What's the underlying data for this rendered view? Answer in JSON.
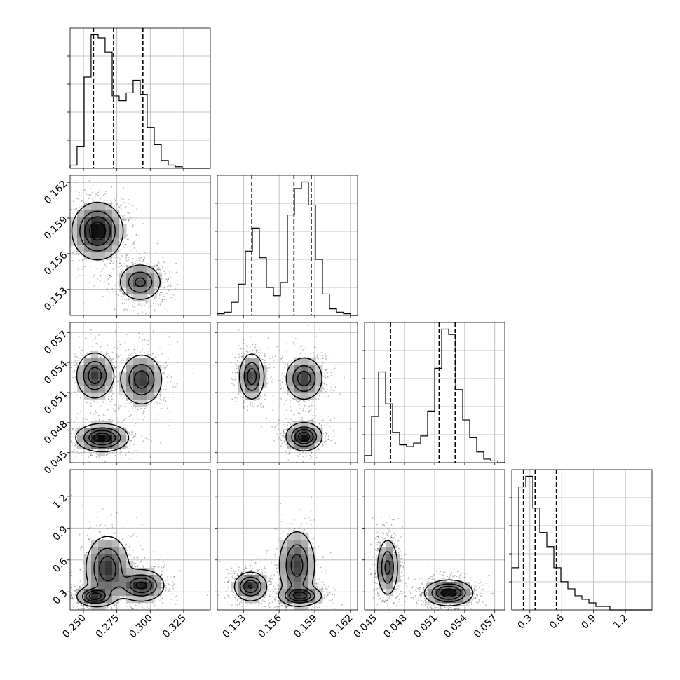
{
  "chart_data": {
    "type": "corner",
    "title": "",
    "colors": {
      "line": "#000000",
      "grid": "#b0b0b0",
      "background": "#ffffff"
    },
    "grid": true,
    "params": [
      {
        "ticks": [
          0.25,
          0.275,
          0.3,
          0.325
        ],
        "tick_labels": [
          "0.250",
          "0.275",
          "0.300",
          "0.325"
        ],
        "range": [
          0.24,
          0.345
        ],
        "quantiles": [
          0.2575,
          0.2725,
          0.2945
        ],
        "hist_edges": [
          0.24,
          0.2452,
          0.2505,
          0.2557,
          0.261,
          0.2662,
          0.2715,
          0.2767,
          0.282,
          0.2872,
          0.2925,
          0.2977,
          0.303,
          0.3082,
          0.3135,
          0.3187,
          0.324,
          0.3292,
          0.3345,
          0.3397,
          0.345
        ],
        "hist_counts": [
          2,
          14,
          58,
          85,
          83,
          74,
          46,
          43,
          48,
          56,
          47,
          26,
          15,
          5,
          2,
          1,
          0,
          0,
          0,
          0
        ]
      },
      {
        "ticks": [
          0.153,
          0.156,
          0.159,
          0.162
        ],
        "tick_labels": [
          "0.153",
          "0.156",
          "0.159",
          "0.162"
        ],
        "range": [
          0.1508,
          0.1626
        ],
        "quantiles": [
          0.1537,
          0.15725,
          0.1587
        ],
        "hist_edges": [
          0.1508,
          0.15139,
          0.15198,
          0.15257,
          0.15316,
          0.15375,
          0.15434,
          0.15493,
          0.15552,
          0.15611,
          0.1567,
          0.15729,
          0.15788,
          0.15847,
          0.15906,
          0.15965,
          0.16024,
          0.16083,
          0.16142,
          0.16201,
          0.1626
        ],
        "hist_counts": [
          1,
          2,
          8,
          19,
          39,
          53,
          35,
          17,
          12,
          20,
          61,
          77,
          81,
          67,
          34,
          13,
          4,
          2,
          1,
          0
        ]
      },
      {
        "ticks": [
          0.045,
          0.048,
          0.051,
          0.054,
          0.057
        ],
        "tick_labels": [
          "0.045",
          "0.048",
          "0.051",
          "0.054",
          "0.057"
        ],
        "range": [
          0.044,
          0.058
        ],
        "quantiles": [
          0.0466,
          0.05145,
          0.05305
        ],
        "hist_edges": [
          0.044,
          0.0447,
          0.0454,
          0.0461,
          0.0468,
          0.0475,
          0.0482,
          0.0489,
          0.0496,
          0.0503,
          0.051,
          0.0517,
          0.0524,
          0.0531,
          0.0538,
          0.0545,
          0.0552,
          0.0559,
          0.0566,
          0.0573,
          0.058
        ],
        "hist_counts": [
          4,
          26,
          51,
          33,
          17,
          10,
          9,
          11,
          15,
          29,
          53,
          75,
          72,
          41,
          24,
          14,
          6,
          2,
          1,
          0
        ]
      },
      {
        "ticks": [
          0.3,
          0.6,
          0.9,
          1.2
        ],
        "tick_labels": [
          "0.3",
          "0.6",
          "0.9",
          "1.2"
        ],
        "range": [
          0.13,
          1.45
        ],
        "quantiles": [
          0.24,
          0.35,
          0.55
        ],
        "hist_edges": [
          0.13,
          0.196,
          0.262,
          0.328,
          0.394,
          0.46,
          0.526,
          0.592,
          0.658,
          0.724,
          0.79,
          0.856,
          0.922,
          0.988,
          1.054,
          1.12,
          1.186,
          1.252,
          1.318,
          1.384,
          1.45
        ],
        "hist_counts": [
          12,
          35,
          38,
          29,
          22,
          18,
          12,
          8,
          6,
          4,
          3,
          2,
          1,
          1,
          0,
          0,
          0,
          0,
          0,
          0
        ]
      }
    ],
    "pairs": [
      {
        "x_param": 0,
        "y_param": 1,
        "modes": [
          {
            "mx": 0.2605,
            "my": 0.1579,
            "sx": 0.0095,
            "sy": 0.0012,
            "w": 0.6
          },
          {
            "mx": 0.2925,
            "my": 0.1536,
            "sx": 0.0082,
            "sy": 0.0008,
            "w": 0.4
          }
        ]
      },
      {
        "x_param": 0,
        "y_param": 2,
        "modes": [
          {
            "mx": 0.2585,
            "my": 0.0527,
            "sx": 0.0072,
            "sy": 0.0012,
            "w": 0.3
          },
          {
            "mx": 0.2935,
            "my": 0.0523,
            "sx": 0.008,
            "sy": 0.0013,
            "w": 0.3
          },
          {
            "mx": 0.264,
            "my": 0.0465,
            "sx": 0.0098,
            "sy": 0.0007,
            "w": 0.4
          }
        ]
      },
      {
        "x_param": 1,
        "y_param": 2,
        "modes": [
          {
            "mx": 0.1537,
            "my": 0.0526,
            "sx": 0.00055,
            "sy": 0.0012,
            "w": 0.3
          },
          {
            "mx": 0.1581,
            "my": 0.0524,
            "sx": 0.0008,
            "sy": 0.0011,
            "w": 0.3
          },
          {
            "mx": 0.1581,
            "my": 0.0466,
            "sx": 0.00075,
            "sy": 0.0007,
            "w": 0.4
          }
        ]
      },
      {
        "x_param": 0,
        "y_param": 3,
        "modes": [
          {
            "mx": 0.258,
            "my": 0.255,
            "sx": 0.0065,
            "sy": 0.045,
            "w": 0.35
          },
          {
            "mx": 0.268,
            "my": 0.52,
            "sx": 0.0085,
            "sy": 0.16,
            "w": 0.3
          },
          {
            "mx": 0.2935,
            "my": 0.36,
            "sx": 0.0085,
            "sy": 0.075,
            "w": 0.35
          }
        ]
      },
      {
        "x_param": 1,
        "y_param": 3,
        "modes": [
          {
            "mx": 0.1536,
            "my": 0.35,
            "sx": 0.0007,
            "sy": 0.07,
            "w": 0.35
          },
          {
            "mx": 0.1578,
            "my": 0.26,
            "sx": 0.0009,
            "sy": 0.045,
            "w": 0.35
          },
          {
            "mx": 0.1575,
            "my": 0.55,
            "sx": 0.0008,
            "sy": 0.17,
            "w": 0.3
          }
        ]
      },
      {
        "x_param": 2,
        "y_param": 3,
        "modes": [
          {
            "mx": 0.0463,
            "my": 0.53,
            "sx": 0.00055,
            "sy": 0.14,
            "w": 0.4
          },
          {
            "mx": 0.0524,
            "my": 0.29,
            "sx": 0.0012,
            "sy": 0.06,
            "w": 0.6
          }
        ]
      }
    ]
  }
}
